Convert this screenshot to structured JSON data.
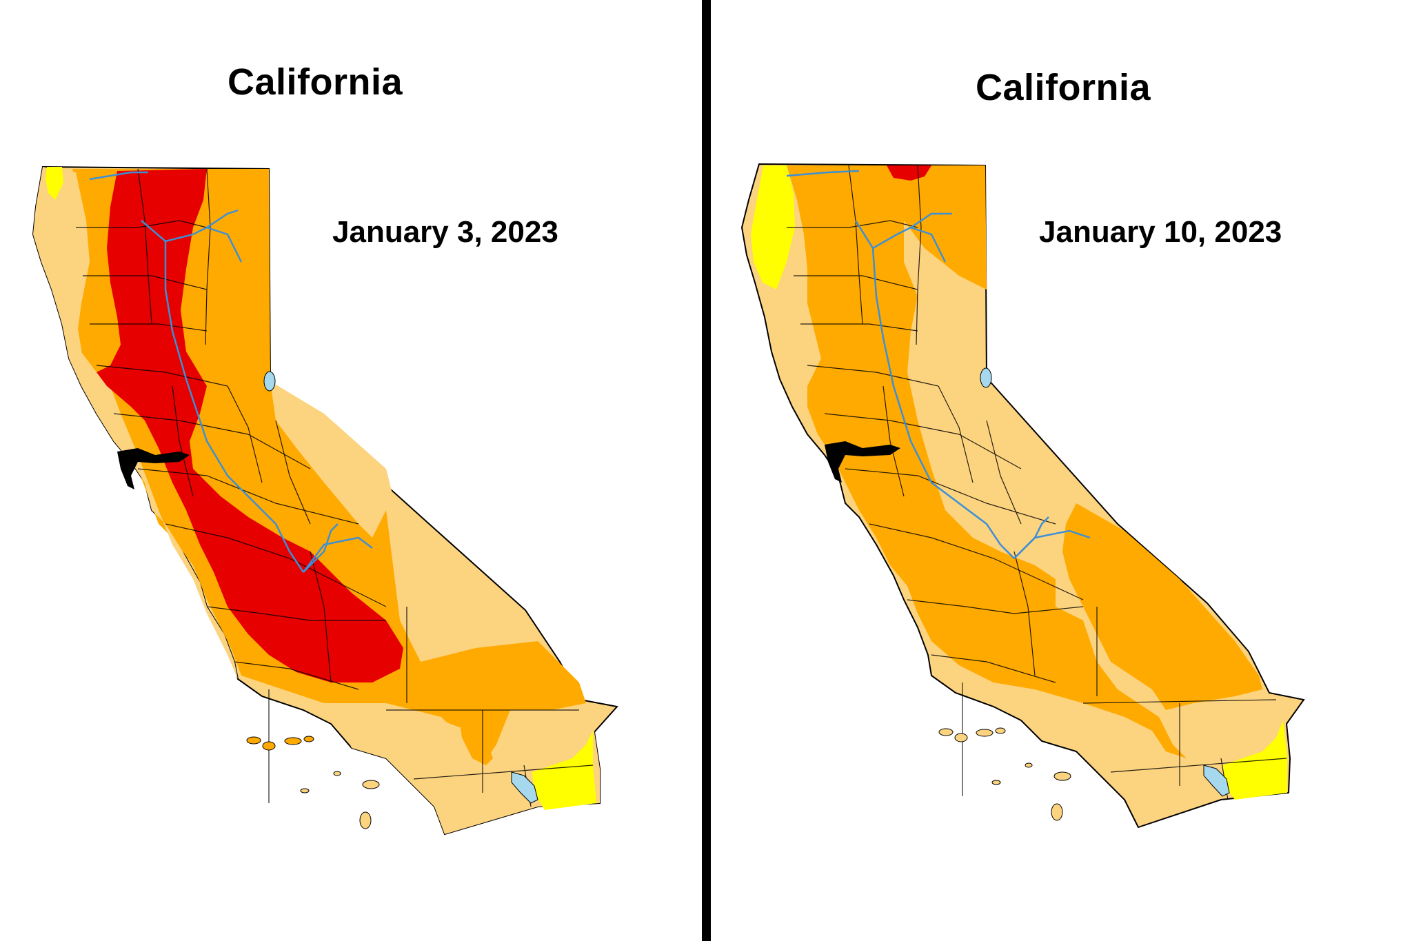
{
  "left_panel": {
    "title": "California",
    "date": "January 3, 2023"
  },
  "right_panel": {
    "title": "California",
    "date": "January 10, 2023"
  },
  "colors": {
    "d0_abnormally_dry": "#ffff00",
    "d1_moderate": "#fcd37f",
    "d2_severe": "#ffaa00",
    "d3_extreme": "#e60000",
    "water": "#a6d8ee",
    "rivers": "#3d8fd6",
    "boundaries": "#000000"
  }
}
